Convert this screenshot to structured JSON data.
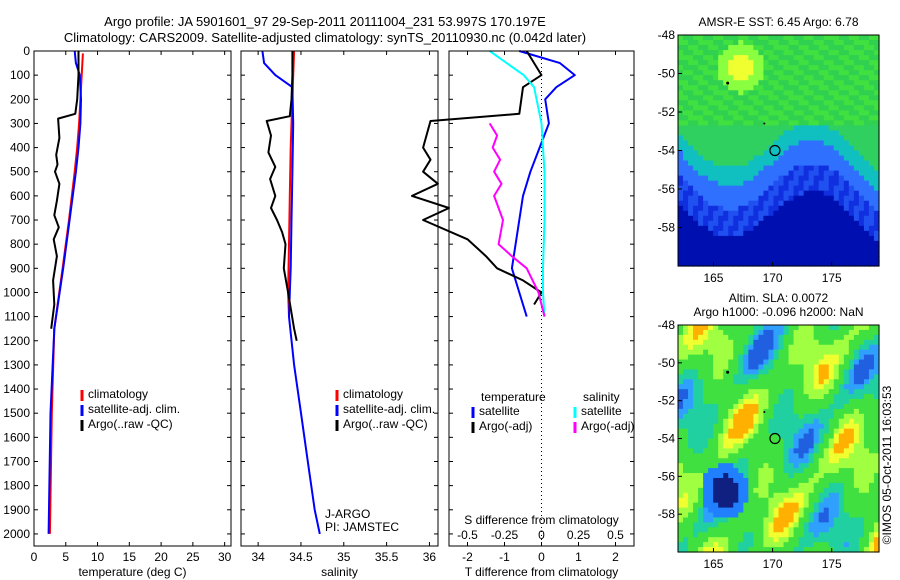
{
  "title_line1": "Argo profile: JA 5901601_97 29-Sep-2011 20111004_231 53.997S 170.197E",
  "title_line2": "Climatology: CARS2009. Satellite-adjusted climatology: synTS_20110930.nc (0.042d later)",
  "watermark": "©IMOS 05-Oct-2011 16:03:53",
  "colors": {
    "climatology": "#ff0000",
    "satellite": "#0000ff",
    "argo": "#000000",
    "sat_sal": "#00ffff",
    "argo_sal": "#ff00ff"
  },
  "chart_data": [
    {
      "id": "temperature",
      "type": "line",
      "xlabel": "temperature (deg C)",
      "ylabel": "",
      "xlim": [
        0,
        31
      ],
      "ylim": [
        2050,
        0
      ],
      "xticks": [
        0,
        5,
        10,
        15,
        20,
        25,
        30
      ],
      "yticks": [
        0,
        100,
        200,
        300,
        400,
        500,
        600,
        700,
        800,
        900,
        1000,
        1100,
        1200,
        1300,
        1400,
        1500,
        1600,
        1700,
        1800,
        1900,
        2000
      ],
      "legend": [
        "climatology",
        "satellite-adj. clim.",
        "Argo(..raw -QC)"
      ],
      "series": [
        {
          "name": "climatology",
          "color": "#ff0000",
          "x": [
            7.7,
            7.5,
            7.3,
            7.1,
            6.8,
            6.4,
            5.5,
            4.5,
            3.2,
            2.8,
            2.5
          ],
          "y": [
            10,
            100,
            200,
            300,
            400,
            500,
            700,
            900,
            1150,
            1500,
            2000
          ]
        },
        {
          "name": "satellite-adj. clim.",
          "color": "#0000ff",
          "x": [
            6.4,
            6.6,
            7.2,
            7.4,
            7.3,
            7.0,
            6.6,
            5.6,
            4.6,
            3.2,
            2.6,
            2.3
          ],
          "y": [
            0,
            50,
            100,
            200,
            300,
            400,
            500,
            700,
            900,
            1150,
            1500,
            2000
          ]
        },
        {
          "name": "Argo(..raw -QC)",
          "color": "#000000",
          "x": [
            7.0,
            7.0,
            6.8,
            6.5,
            3.8,
            4.0,
            3.5,
            3.7,
            3.3,
            4.0,
            3.6,
            3.2,
            3.9,
            3.1,
            3.6,
            3.0,
            3.2,
            2.7
          ],
          "y": [
            0,
            100,
            200,
            260,
            280,
            360,
            430,
            470,
            500,
            550,
            620,
            680,
            730,
            780,
            850,
            950,
            1050,
            1150
          ]
        }
      ]
    },
    {
      "id": "salinity",
      "type": "line",
      "xlabel": "salinity",
      "ylabel": "",
      "xlim": [
        33.8,
        36.1
      ],
      "ylim": [
        2050,
        0
      ],
      "xticks": [
        34,
        34.5,
        35,
        35.5,
        36
      ],
      "xtick_labels": [
        "34",
        "34.5",
        "35",
        "35.5",
        "36"
      ],
      "legend": [
        "climatology",
        "satellite-adj. clim.",
        "Argo(..raw -QC)"
      ],
      "annotation_lines": [
        "J-ARGO",
        "PI: JAMSTEC"
      ],
      "series": [
        {
          "name": "climatology",
          "color": "#ff0000",
          "x": [
            34.42,
            34.41,
            34.4,
            34.39,
            34.38,
            34.37,
            34.36,
            34.35,
            34.36
          ],
          "y": [
            0,
            100,
            200,
            300,
            400,
            600,
            800,
            1000,
            1100
          ]
        },
        {
          "name": "satellite-adj. clim.",
          "color": "#0000ff",
          "x": [
            34.05,
            34.07,
            34.2,
            34.4,
            34.41,
            34.4,
            34.39,
            34.38,
            34.37,
            34.36,
            34.42,
            34.5,
            34.58,
            34.66,
            34.72
          ],
          "y": [
            0,
            50,
            100,
            150,
            300,
            500,
            700,
            900,
            1000,
            1100,
            1300,
            1500,
            1700,
            1900,
            2000
          ]
        },
        {
          "name": "Argo(..raw -QC)",
          "color": "#000000",
          "x": [
            34.4,
            34.4,
            34.39,
            34.37,
            34.1,
            34.15,
            34.12,
            34.2,
            34.14,
            34.2,
            34.15,
            34.22,
            34.28,
            34.32,
            34.3,
            34.35,
            34.42,
            34.45
          ],
          "y": [
            0,
            100,
            200,
            270,
            290,
            350,
            420,
            480,
            530,
            600,
            650,
            700,
            750,
            800,
            900,
            1000,
            1150,
            1200
          ]
        }
      ]
    },
    {
      "id": "difference",
      "type": "line",
      "xlabel": "T difference from climatology",
      "xlabel_top": "S difference from climatology",
      "ylabel": "",
      "xlim": [
        -2.5,
        2.5
      ],
      "ylim": [
        2050,
        0
      ],
      "xticks": [
        -2,
        -1,
        0,
        1,
        2
      ],
      "xticks_top": [
        -0.5,
        -0.25,
        0,
        0.25,
        0.5
      ],
      "xticks_top_labels": [
        "-0.5",
        "-0.25",
        "0",
        "0.25",
        "0.5"
      ],
      "legend_left_title": "temperature",
      "legend_right_title": "salinity",
      "legend": [
        "satellite",
        "Argo(-adj)",
        "satellite",
        "Argo(-adj)"
      ],
      "series": [
        {
          "name": "temperature satellite",
          "color": "#0000ff",
          "x": [
            -0.6,
            0.5,
            0.9,
            0.4,
            0.1,
            0.2,
            -0.3,
            -0.5,
            -0.6,
            -0.7,
            -0.8,
            -0.6,
            -0.4
          ],
          "y": [
            0,
            50,
            100,
            150,
            200,
            300,
            500,
            600,
            700,
            800,
            900,
            1000,
            1100
          ]
        },
        {
          "name": "temperature Argo(-adj)",
          "color": "#000000",
          "x": [
            -0.4,
            0.0,
            -0.5,
            -0.6,
            -3.0,
            -3.2,
            -3.0,
            -3.2,
            -2.8,
            -3.5,
            -2.5,
            -3.2,
            -2.0,
            -1.5,
            -1.2,
            -0.5,
            0.0,
            -0.2
          ],
          "y": [
            0,
            100,
            150,
            260,
            290,
            400,
            450,
            500,
            550,
            600,
            650,
            700,
            780,
            850,
            900,
            950,
            1000,
            1050
          ]
        },
        {
          "name": "salinity satellite",
          "color": "#00ffff",
          "x": [
            -0.35,
            -0.12,
            -0.05,
            0.0,
            0.02,
            0.02,
            0.01,
            0.01,
            0.02
          ],
          "y": [
            0,
            100,
            150,
            300,
            500,
            700,
            900,
            1000,
            1100
          ]
        },
        {
          "name": "salinity Argo(-adj)",
          "color": "#ff00ff",
          "x": [
            -0.35,
            -0.3,
            -0.33,
            -0.28,
            -0.32,
            -0.27,
            -0.32,
            -0.26,
            -0.29,
            -0.2,
            -0.1,
            -0.02,
            0.02
          ],
          "y": [
            300,
            350,
            400,
            450,
            500,
            550,
            600,
            700,
            800,
            850,
            900,
            1000,
            1100
          ]
        }
      ]
    },
    {
      "id": "sst_map",
      "type": "heatmap",
      "title": "AMSR-E SST: 6.45 Argo: 6.78",
      "xlim": [
        162,
        179
      ],
      "ylim": [
        -60,
        -48
      ],
      "xticks": [
        165,
        170,
        175
      ],
      "yticks": [
        -48,
        -50,
        -52,
        -54,
        -56,
        -58
      ]
    },
    {
      "id": "sla_map",
      "type": "heatmap",
      "title": "Altim. SLA: 0.0072",
      "subtitle": "Argo h1000: -0.096 h2000: NaN",
      "xlim": [
        162,
        179
      ],
      "ylim": [
        -60,
        -48
      ],
      "xticks": [
        165,
        170,
        175
      ],
      "yticks": [
        -48,
        -50,
        -52,
        -54,
        -56,
        -58
      ]
    }
  ]
}
